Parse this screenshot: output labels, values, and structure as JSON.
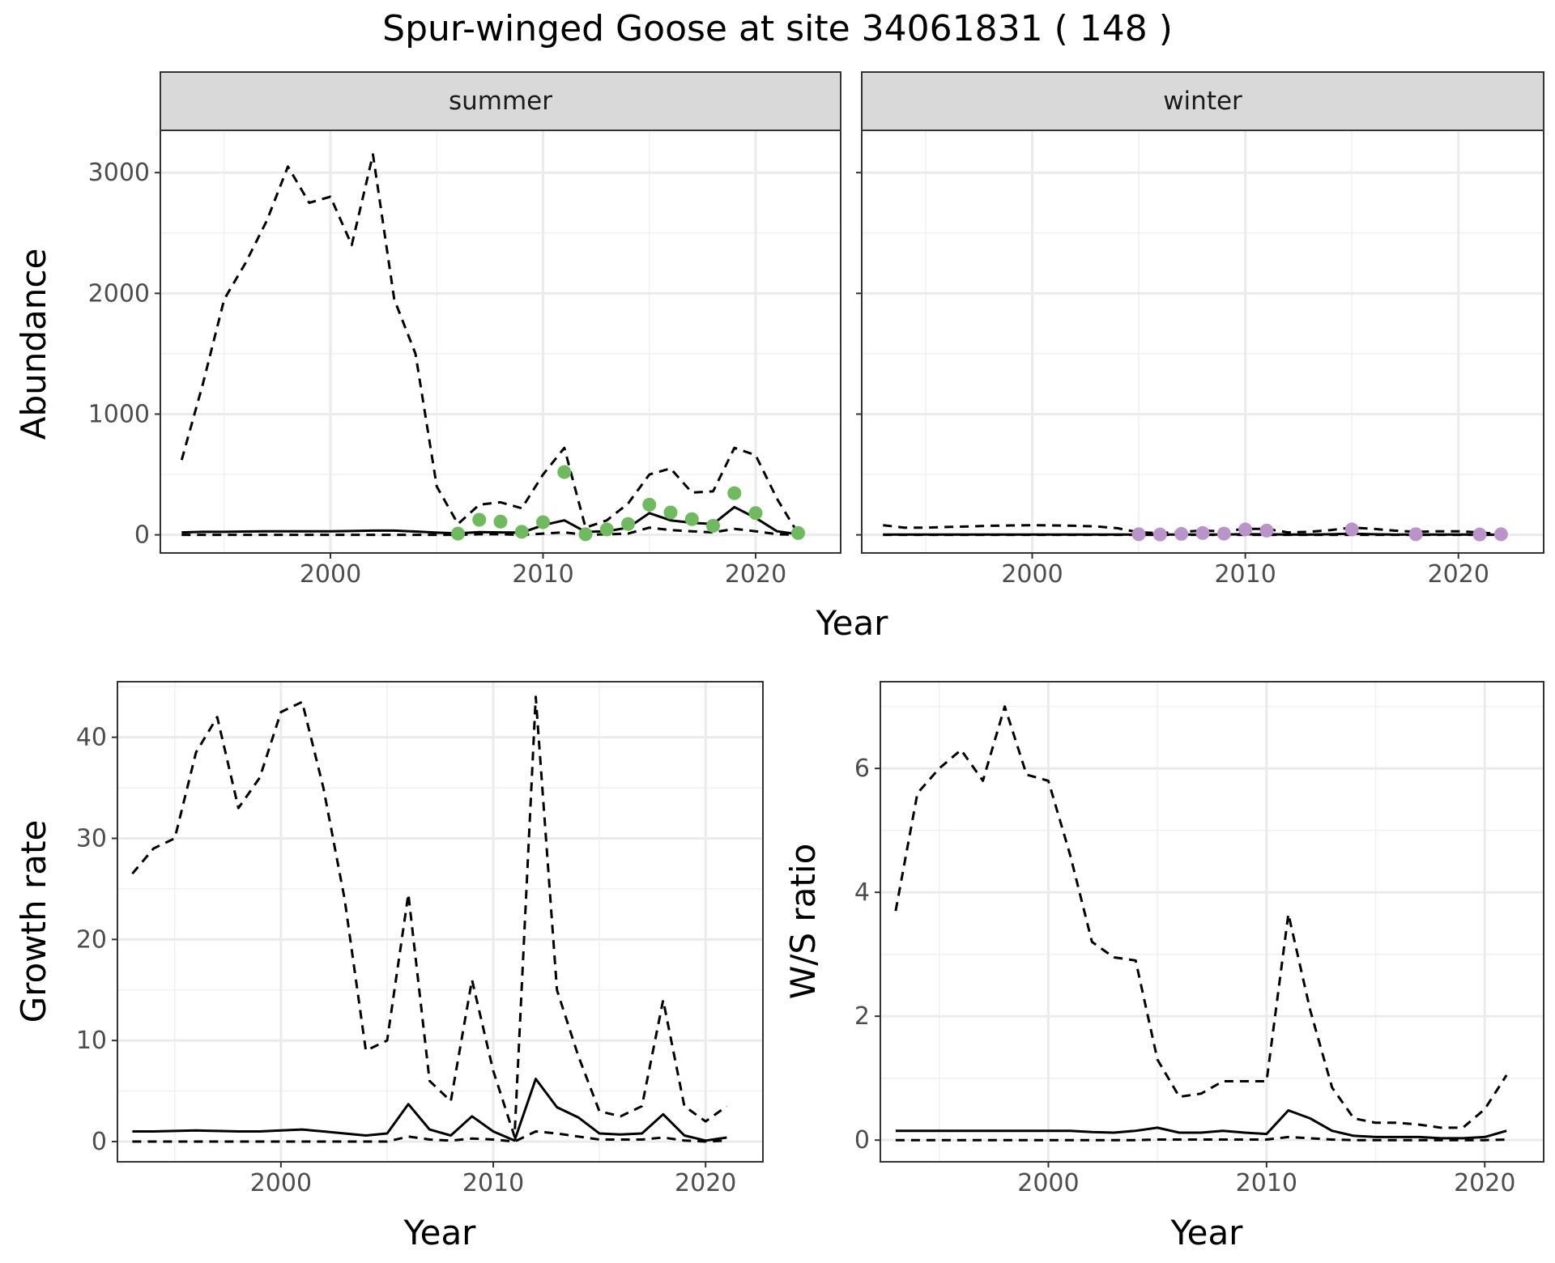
{
  "chart_data": [
    {
      "type": "line",
      "title": "Spur-winged Goose at site 34061831 ( 148 )",
      "xlabel": "Year",
      "ylabel": "Abundance",
      "facets": [
        "summer",
        "winter"
      ],
      "xlim": [
        1992,
        2024
      ],
      "ylim": [
        -150,
        3350
      ],
      "xticks": [
        2000,
        2010,
        2020
      ],
      "yticks": [
        0,
        1000,
        2000,
        3000
      ],
      "grid": true,
      "panels": [
        {
          "facet": "summer",
          "x": [
            1993,
            1994,
            1995,
            1996,
            1997,
            1998,
            1999,
            2000,
            2001,
            2002,
            2003,
            2004,
            2005,
            2006,
            2007,
            2008,
            2009,
            2010,
            2011,
            2012,
            2013,
            2014,
            2015,
            2016,
            2017,
            2018,
            2019,
            2020,
            2021,
            2022
          ],
          "series": [
            {
              "role": "estimate",
              "style": "solid",
              "values": [
                20,
                25,
                25,
                28,
                30,
                30,
                30,
                30,
                32,
                35,
                35,
                28,
                18,
                12,
                22,
                20,
                18,
                80,
                120,
                25,
                30,
                60,
                180,
                120,
                100,
                90,
                230,
                140,
                30,
                5
              ]
            },
            {
              "role": "upper",
              "style": "dashed",
              "values": [
                620,
                1250,
                1950,
                2250,
                2600,
                3050,
                2750,
                2800,
                2400,
                3150,
                1950,
                1500,
                400,
                90,
                250,
                270,
                220,
                500,
                720,
                60,
                120,
                260,
                500,
                550,
                350,
                360,
                720,
                660,
                300,
                10
              ]
            },
            {
              "role": "lower",
              "style": "dashed",
              "values": [
                0,
                0,
                0,
                0,
                0,
                0,
                0,
                0,
                0,
                0,
                0,
                0,
                0,
                0,
                5,
                5,
                0,
                10,
                20,
                0,
                5,
                10,
                60,
                40,
                30,
                20,
                50,
                30,
                5,
                0
              ]
            }
          ],
          "points": {
            "color": "#6dbb5c",
            "x": [
              2006,
              2007,
              2008,
              2009,
              2010,
              2011,
              2012,
              2013,
              2014,
              2015,
              2016,
              2017,
              2018,
              2019,
              2020,
              2022
            ],
            "y": [
              10,
              125,
              110,
              25,
              105,
              520,
              5,
              45,
              90,
              250,
              185,
              130,
              75,
              345,
              180,
              15
            ]
          }
        },
        {
          "facet": "winter",
          "x": [
            1993,
            1994,
            1995,
            1996,
            1997,
            1998,
            1999,
            2000,
            2001,
            2002,
            2003,
            2004,
            2005,
            2006,
            2007,
            2008,
            2009,
            2010,
            2011,
            2012,
            2013,
            2014,
            2015,
            2016,
            2017,
            2018,
            2019,
            2020,
            2021,
            2022
          ],
          "series": [
            {
              "role": "estimate",
              "style": "solid",
              "values": [
                2,
                2,
                2,
                2,
                2,
                2,
                2,
                3,
                3,
                3,
                3,
                2,
                2,
                2,
                2,
                3,
                3,
                5,
                5,
                2,
                3,
                5,
                10,
                5,
                3,
                2,
                3,
                3,
                2,
                1
              ]
            },
            {
              "role": "upper",
              "style": "dashed",
              "values": [
                80,
                60,
                60,
                65,
                70,
                75,
                78,
                80,
                78,
                75,
                70,
                55,
                20,
                15,
                25,
                35,
                30,
                50,
                50,
                20,
                25,
                40,
                60,
                50,
                35,
                25,
                30,
                30,
                20,
                5
              ]
            },
            {
              "role": "lower",
              "style": "dashed",
              "values": [
                0,
                0,
                0,
                0,
                0,
                0,
                0,
                0,
                0,
                0,
                0,
                0,
                0,
                0,
                0,
                0,
                0,
                0,
                0,
                0,
                0,
                0,
                0,
                0,
                0,
                0,
                0,
                0,
                0,
                0
              ]
            }
          ],
          "points": {
            "color": "#b993c9",
            "x": [
              2005,
              2006,
              2007,
              2008,
              2009,
              2010,
              2011,
              2015,
              2018,
              2021,
              2022
            ],
            "y": [
              5,
              3,
              8,
              15,
              10,
              45,
              35,
              45,
              5,
              3,
              5
            ]
          }
        }
      ]
    },
    {
      "type": "line",
      "xlabel": "Year",
      "ylabel": "Growth rate",
      "xlim": [
        1992.3,
        2022.7
      ],
      "ylim": [
        -2,
        45.5
      ],
      "xticks": [
        2000,
        2010,
        2020
      ],
      "yticks": [
        0,
        10,
        20,
        30,
        40
      ],
      "grid": true,
      "x": [
        1993,
        1994,
        1995,
        1996,
        1997,
        1998,
        1999,
        2000,
        2001,
        2002,
        2003,
        2004,
        2005,
        2006,
        2007,
        2008,
        2009,
        2010,
        2011,
        2012,
        2013,
        2014,
        2015,
        2016,
        2017,
        2018,
        2019,
        2020,
        2021
      ],
      "series": [
        {
          "role": "estimate",
          "style": "solid",
          "values": [
            1.0,
            1.0,
            1.05,
            1.1,
            1.05,
            1.0,
            1.0,
            1.1,
            1.2,
            1.0,
            0.8,
            0.6,
            0.8,
            3.7,
            1.2,
            0.6,
            2.5,
            1.0,
            0.1,
            6.2,
            3.4,
            2.4,
            0.8,
            0.7,
            0.8,
            2.7,
            0.6,
            0.1,
            0.4
          ]
        },
        {
          "role": "upper",
          "style": "dashed",
          "values": [
            26.5,
            29,
            30,
            38.5,
            42,
            33,
            36,
            42.5,
            43.5,
            35,
            24,
            9,
            10,
            24.5,
            6,
            4,
            16,
            7,
            0.5,
            44,
            15,
            8.5,
            3,
            2.5,
            3.5,
            14,
            3.5,
            2,
            3.5
          ]
        },
        {
          "role": "lower",
          "style": "dashed",
          "values": [
            0,
            0,
            0,
            0,
            0,
            0,
            0,
            0,
            0,
            0,
            0,
            0,
            0,
            0.5,
            0.2,
            0.1,
            0.3,
            0.2,
            0,
            1.0,
            0.8,
            0.5,
            0.2,
            0.2,
            0.2,
            0.4,
            0.1,
            0,
            0.1
          ]
        }
      ]
    },
    {
      "type": "line",
      "xlabel": "Year",
      "ylabel": "W/S ratio",
      "xlim": [
        1992.3,
        2022.7
      ],
      "ylim": [
        -0.35,
        7.4
      ],
      "xticks": [
        2000,
        2010,
        2020
      ],
      "yticks": [
        0,
        2,
        4,
        6
      ],
      "grid": true,
      "x": [
        1993,
        1994,
        1995,
        1996,
        1997,
        1998,
        1999,
        2000,
        2001,
        2002,
        2003,
        2004,
        2005,
        2006,
        2007,
        2008,
        2009,
        2010,
        2011,
        2012,
        2013,
        2014,
        2015,
        2016,
        2017,
        2018,
        2019,
        2020,
        2021
      ],
      "series": [
        {
          "role": "estimate",
          "style": "solid",
          "values": [
            0.15,
            0.15,
            0.15,
            0.15,
            0.15,
            0.15,
            0.15,
            0.15,
            0.15,
            0.13,
            0.12,
            0.15,
            0.2,
            0.12,
            0.12,
            0.15,
            0.12,
            0.1,
            0.48,
            0.35,
            0.15,
            0.07,
            0.05,
            0.05,
            0.05,
            0.03,
            0.03,
            0.05,
            0.15
          ]
        },
        {
          "role": "upper",
          "style": "dashed",
          "values": [
            3.7,
            5.6,
            6.0,
            6.3,
            5.8,
            7.0,
            5.9,
            5.8,
            4.6,
            3.2,
            2.95,
            2.9,
            1.3,
            0.7,
            0.75,
            0.95,
            0.95,
            0.95,
            3.65,
            2.1,
            0.85,
            0.35,
            0.28,
            0.28,
            0.25,
            0.2,
            0.2,
            0.5,
            1.05
          ]
        },
        {
          "role": "lower",
          "style": "dashed",
          "values": [
            0,
            0,
            0,
            0,
            0,
            0,
            0,
            0,
            0,
            0,
            0,
            0,
            0.01,
            0.01,
            0.01,
            0.01,
            0.01,
            0.01,
            0.05,
            0.03,
            0.01,
            0,
            0,
            0,
            0,
            0,
            0,
            0,
            0.01
          ]
        }
      ]
    }
  ]
}
